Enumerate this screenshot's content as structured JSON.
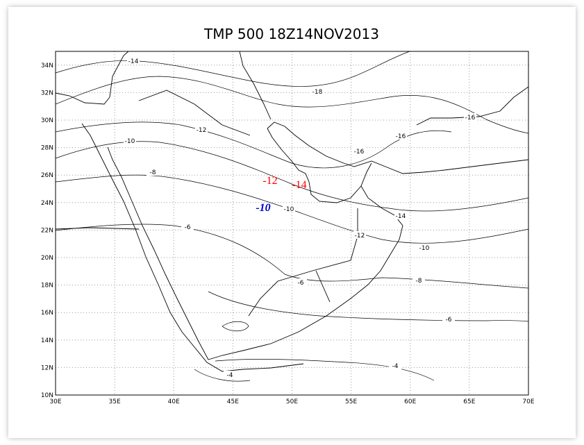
{
  "map": {
    "title": "TMP 500  18Z14NOV2013",
    "lon_range": [
      30,
      70
    ],
    "lat_range": [
      10,
      35
    ],
    "xticks": [
      {
        "value": 30,
        "label": "30E"
      },
      {
        "value": 35,
        "label": "35E"
      },
      {
        "value": 40,
        "label": "40E"
      },
      {
        "value": 45,
        "label": "45E"
      },
      {
        "value": 50,
        "label": "50E"
      },
      {
        "value": 55,
        "label": "55E"
      },
      {
        "value": 60,
        "label": "60E"
      },
      {
        "value": 65,
        "label": "65E"
      },
      {
        "value": 70,
        "label": "70E"
      }
    ],
    "yticks": [
      {
        "value": 10,
        "label": "10N"
      },
      {
        "value": 12,
        "label": "12N"
      },
      {
        "value": 14,
        "label": "14N"
      },
      {
        "value": 16,
        "label": "16N"
      },
      {
        "value": 18,
        "label": "18N"
      },
      {
        "value": 20,
        "label": "20N"
      },
      {
        "value": 22,
        "label": "22N"
      },
      {
        "value": 24,
        "label": "24N"
      },
      {
        "value": 26,
        "label": "26N"
      },
      {
        "value": 28,
        "label": "28N"
      },
      {
        "value": 30,
        "label": "30N"
      },
      {
        "value": 32,
        "label": "32N"
      },
      {
        "value": 34,
        "label": "34N"
      }
    ],
    "contour_labels": [
      -14,
      -18,
      -16,
      -12,
      -16,
      -10,
      -16,
      -8,
      -10,
      -14,
      -6,
      -12,
      -10,
      -6,
      -8,
      -6,
      -4,
      -4
    ],
    "annotations": [
      {
        "text": "-12",
        "color": "#ff0000"
      },
      {
        "text": "-14",
        "color": "#ff0000"
      },
      {
        "text": "-10",
        "color": "#0000cc"
      }
    ]
  }
}
